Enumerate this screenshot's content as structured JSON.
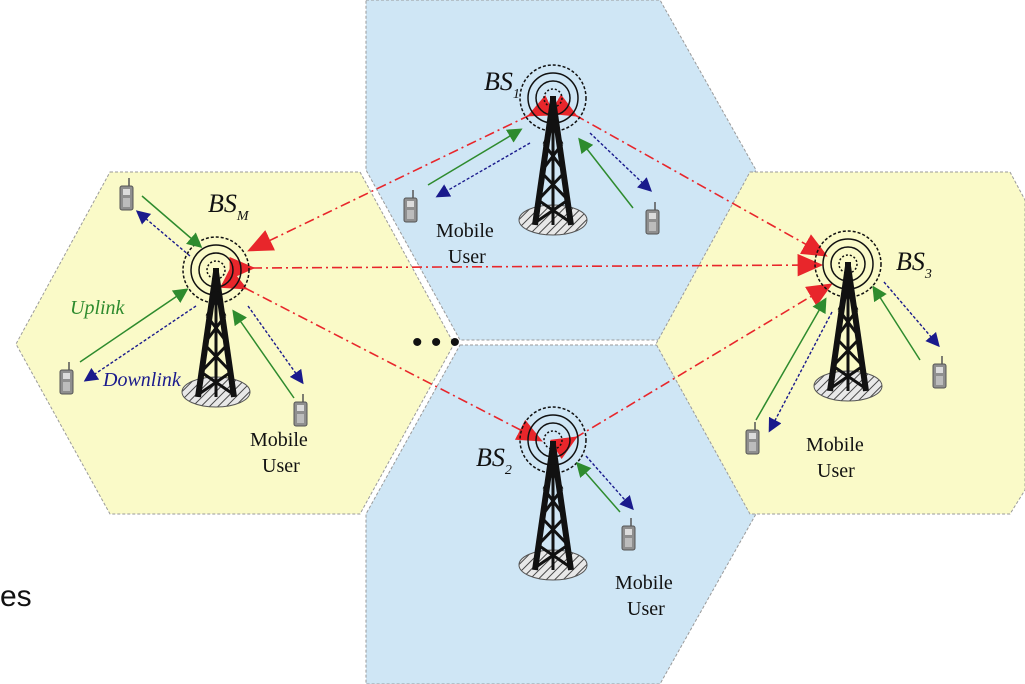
{
  "colors": {
    "cell_yellow": "#fafac8",
    "cell_blue": "#cfe6f5",
    "cell_edge": "#9a9a9a",
    "uplink": "#2e8b2e",
    "downlink": "#1a1a8c",
    "backhaul": "#e8262b",
    "tower": "#111111"
  },
  "icons": [
    "base-station-tower-icon",
    "mobile-phone-icon",
    "antenna-wave-icon"
  ],
  "cells": {
    "bsm": {
      "bs_main": "BS",
      "bs_sub": "M",
      "user_l1": "Mobile",
      "user_l2": "User",
      "uplink_label": "Uplink",
      "downlink_label": "Downlink"
    },
    "bs1": {
      "bs_main": "BS",
      "bs_sub": "1",
      "user_l1": "Mobile",
      "user_l2": "User"
    },
    "bs2": {
      "bs_main": "BS",
      "bs_sub": "2",
      "user_l1": "Mobile",
      "user_l2": "User"
    },
    "bs3": {
      "bs_main": "BS",
      "bs_sub": "3",
      "user_l1": "Mobile",
      "user_l2": "User"
    }
  },
  "ellipsis": "• • •",
  "cut_text": "es"
}
